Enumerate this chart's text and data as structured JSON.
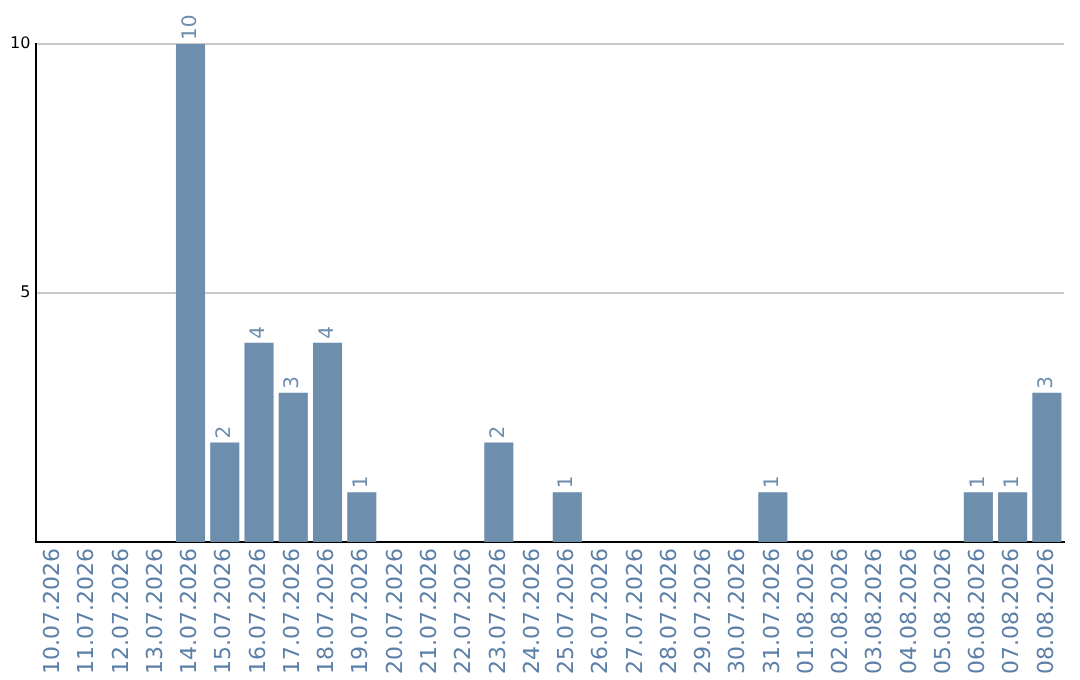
{
  "chart_data": {
    "type": "bar",
    "categories": [
      "10.07.2026",
      "11.07.2026",
      "12.07.2026",
      "13.07.2026",
      "14.07.2026",
      "15.07.2026",
      "16.07.2026",
      "17.07.2026",
      "18.07.2026",
      "19.07.2026",
      "20.07.2026",
      "21.07.2026",
      "22.07.2026",
      "23.07.2026",
      "24.07.2026",
      "25.07.2026",
      "26.07.2026",
      "27.07.2026",
      "28.07.2026",
      "29.07.2026",
      "30.07.2026",
      "31.07.2026",
      "01.08.2026",
      "02.08.2026",
      "03.08.2026",
      "04.08.2026",
      "05.08.2026",
      "06.08.2026",
      "07.08.2026",
      "08.08.2026"
    ],
    "values": [
      0,
      0,
      0,
      0,
      10,
      2,
      4,
      3,
      4,
      1,
      0,
      0,
      0,
      2,
      0,
      1,
      0,
      0,
      0,
      0,
      0,
      1,
      0,
      0,
      0,
      0,
      0,
      1,
      1,
      3
    ],
    "value_labels": [
      null,
      null,
      null,
      null,
      "10",
      "2",
      "4",
      "3",
      "4",
      "1",
      null,
      null,
      null,
      "2",
      null,
      "1",
      null,
      null,
      null,
      null,
      null,
      "1",
      null,
      null,
      null,
      null,
      null,
      "1",
      "1",
      "3"
    ],
    "color": "#6e8eae",
    "ylim": [
      0,
      10
    ],
    "yticks": [
      5,
      10
    ],
    "grid": "y"
  }
}
